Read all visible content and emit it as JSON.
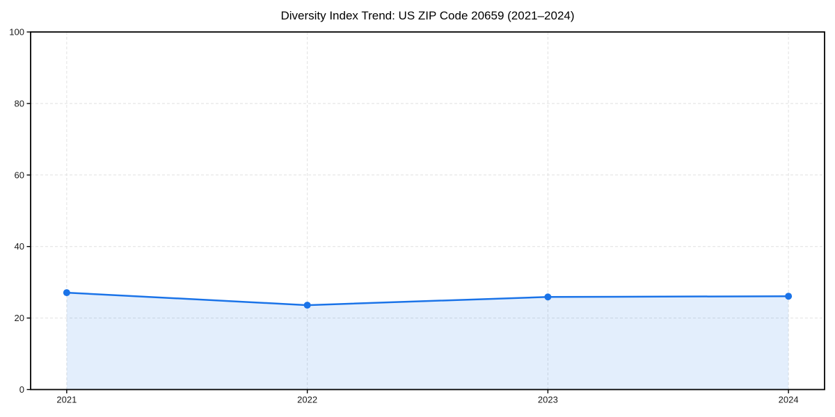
{
  "chart_data": {
    "type": "area",
    "title": "Diversity Index Trend: US ZIP Code 20659 (2021–2024)",
    "x": [
      2021,
      2022,
      2023,
      2024
    ],
    "xticks": [
      2021,
      2022,
      2023,
      2024
    ],
    "yticks": [
      0,
      20,
      40,
      60,
      80,
      100
    ],
    "xlim": [
      2020.85,
      2024.15
    ],
    "ylim": [
      0,
      100
    ],
    "series": [
      {
        "name": "Diversity Index",
        "values": [
          27.1,
          23.6,
          25.9,
          26.1
        ]
      }
    ],
    "xlabel": "",
    "ylabel": "",
    "grid": "dashed",
    "legend": "none",
    "colors": {
      "line": "#1a73e8",
      "fill_opacity": 0.12,
      "grid": "#e0e0e0",
      "axis": "#000000",
      "tick_label": "#1a1a1a",
      "title": "#000000"
    }
  }
}
